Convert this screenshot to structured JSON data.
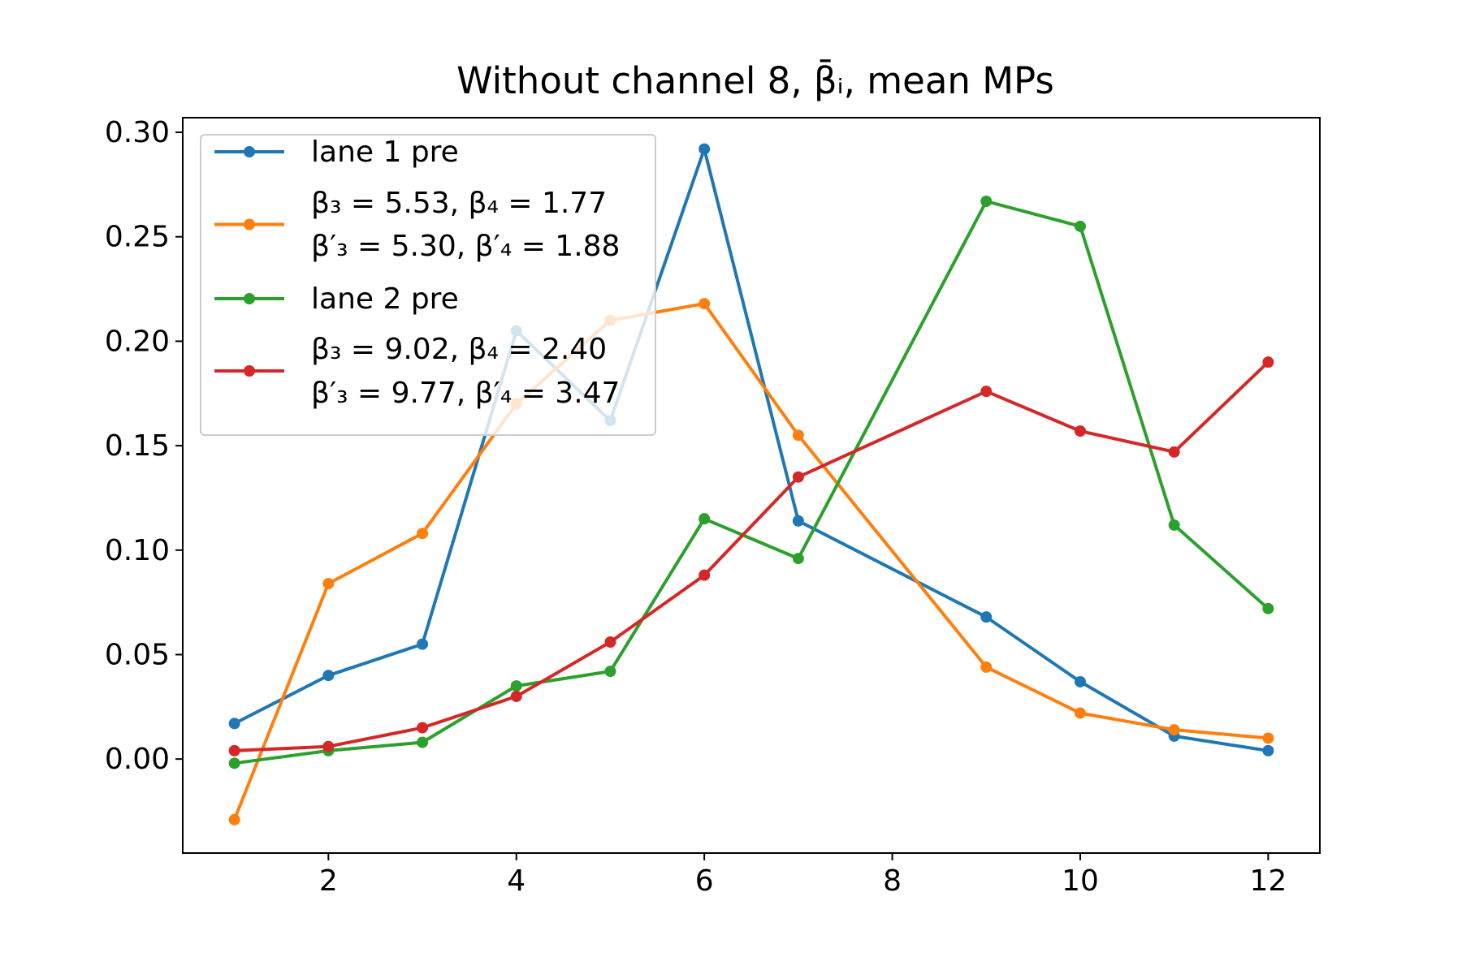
{
  "chart_data": {
    "type": "line",
    "title": "Without channel 8, β̄ᵢ, mean MPs",
    "xlabel": "",
    "ylabel": "",
    "xlim": [
      0.45,
      12.55
    ],
    "ylim": [
      -0.045,
      0.307
    ],
    "x_ticks": [
      "2",
      "4",
      "6",
      "8",
      "10",
      "12"
    ],
    "y_ticks": [
      "0.00",
      "0.05",
      "0.10",
      "0.15",
      "0.20",
      "0.25",
      "0.30"
    ],
    "grid": false,
    "legend_position": "upper-left",
    "series": [
      {
        "name": "lane 1 pre",
        "color": "#1f77b4",
        "x": [
          1,
          2,
          3,
          4,
          5,
          6,
          7,
          9,
          10,
          11,
          12
        ],
        "y": [
          0.017,
          0.04,
          0.055,
          0.205,
          0.162,
          0.292,
          0.114,
          0.068,
          0.037,
          0.011,
          0.004
        ]
      },
      {
        "name_lines": [
          "β₃ = 5.53, β₄ = 1.77",
          "β′₃ = 5.30, β′₄ = 1.88"
        ],
        "color": "#ff7f0e",
        "x": [
          1,
          2,
          3,
          4,
          5,
          6,
          7,
          9,
          10,
          11,
          12
        ],
        "y": [
          -0.029,
          0.084,
          0.108,
          0.17,
          0.21,
          0.218,
          0.155,
          0.044,
          0.022,
          0.014,
          0.01
        ]
      },
      {
        "name": "lane 2 pre",
        "color": "#2ca02c",
        "x": [
          1,
          2,
          3,
          4,
          5,
          6,
          7,
          9,
          10,
          11,
          12
        ],
        "y": [
          -0.002,
          0.004,
          0.008,
          0.035,
          0.042,
          0.115,
          0.096,
          0.267,
          0.255,
          0.112,
          0.072
        ]
      },
      {
        "name_lines": [
          "β₃ = 9.02, β₄ = 2.40",
          "β′₃ = 9.77, β′₄ = 3.47"
        ],
        "color": "#d62728",
        "x": [
          1,
          2,
          3,
          4,
          5,
          6,
          7,
          9,
          10,
          11,
          12
        ],
        "y": [
          0.004,
          0.006,
          0.015,
          0.03,
          0.056,
          0.088,
          0.135,
          0.176,
          0.157,
          0.147,
          0.19
        ]
      }
    ]
  }
}
